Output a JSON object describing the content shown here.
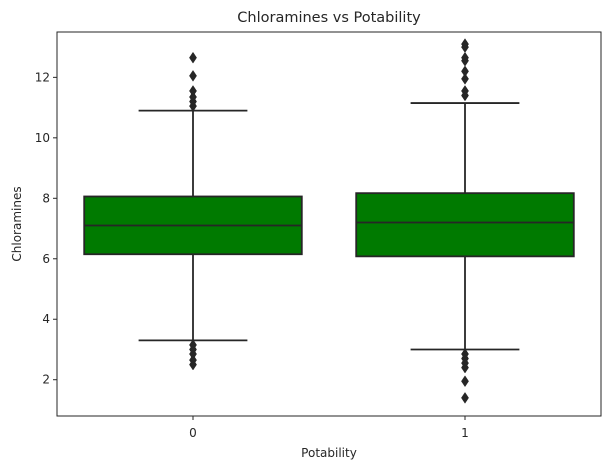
{
  "chart_data": {
    "type": "box",
    "title": "Chloramines vs Potability",
    "xlabel": "Potability",
    "ylabel": "Chloramines",
    "categories": [
      "0",
      "1"
    ],
    "ylim": [
      0.8,
      13.5
    ],
    "yticks": [
      2,
      4,
      6,
      8,
      10,
      12
    ],
    "grid": false,
    "box_color": "#007a00",
    "line_color": "#262626",
    "boxes": [
      {
        "category": "0",
        "whisker_low": 3.3,
        "q1": 6.15,
        "median": 7.1,
        "q3": 8.06,
        "whisker_high": 10.9,
        "outliers_low": [
          3.15,
          3.0,
          2.85,
          2.65,
          2.5
        ],
        "outliers_high": [
          11.05,
          11.2,
          11.35,
          11.55,
          12.05,
          12.65
        ]
      },
      {
        "category": "1",
        "whisker_low": 3.0,
        "q1": 6.08,
        "median": 7.2,
        "q3": 8.17,
        "whisker_high": 11.15,
        "outliers_low": [
          2.85,
          2.7,
          2.55,
          2.4,
          1.95,
          1.4
        ],
        "outliers_high": [
          11.4,
          11.55,
          11.95,
          12.2,
          12.55,
          12.65,
          13.0,
          13.1
        ]
      }
    ]
  }
}
